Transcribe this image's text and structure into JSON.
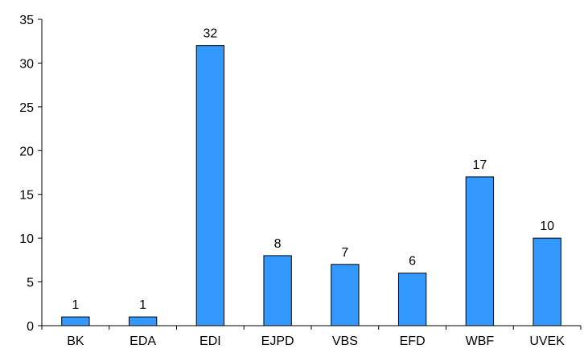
{
  "chart_data": {
    "type": "bar",
    "title": "",
    "xlabel": "",
    "ylabel": "",
    "categories": [
      "BK",
      "EDA",
      "EDI",
      "EJPD",
      "VBS",
      "EFD",
      "WBF",
      "UVEK"
    ],
    "values": [
      1,
      1,
      32,
      8,
      7,
      6,
      17,
      10
    ],
    "value_labels": [
      "1",
      "1",
      "32",
      "8",
      "7",
      "6",
      "17",
      "10"
    ],
    "ylim": [
      0,
      35
    ],
    "yticks": [
      0,
      5,
      10,
      15,
      20,
      25,
      30,
      35
    ],
    "ytick_labels": [
      "0",
      "5",
      "10",
      "15",
      "20",
      "25",
      "30",
      "35"
    ],
    "grid": false,
    "legend": "none",
    "bar_color": "#3399ff",
    "bar_edge_color": "#000000"
  }
}
